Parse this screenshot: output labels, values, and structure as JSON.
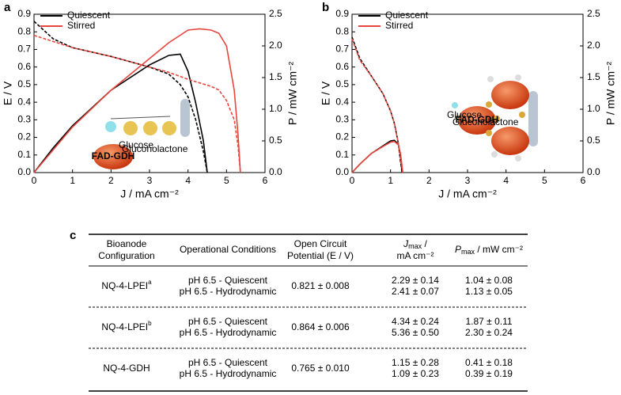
{
  "chart_data": [
    {
      "type": "line",
      "panel": "a",
      "xlabel": "J / mA cm⁻²",
      "ylabel": "E / V",
      "y2label": "P / mW cm⁻²",
      "xlim": [
        0,
        6
      ],
      "xticks": [
        0,
        1,
        2,
        3,
        4,
        5,
        6
      ],
      "ylim": [
        0,
        0.9
      ],
      "yticks": [
        {
          "value": 0,
          "label": "0.0"
        },
        0.1,
        0.2,
        0.3,
        0.4,
        0.5,
        0.6,
        0.7,
        0.8,
        0.9
      ],
      "y2lim": [
        0,
        2.5
      ],
      "y2ticks": [
        {
          "value": 0,
          "label": "0.0"
        },
        0.5,
        {
          "value": 1,
          "label": "1.0"
        },
        1.5,
        {
          "value": 2,
          "label": "2.0"
        },
        2.5
      ],
      "legend": "upper left",
      "inset_labels": [
        "FAD-GDH",
        "Glucose",
        "Gluconolactone"
      ],
      "series": [
        {
          "name": "Quiescent",
          "color": "#000000",
          "x": [
            0,
            0.5,
            1,
            2,
            3,
            3.5,
            3.8,
            4,
            4.2,
            4.4,
            4.5
          ],
          "values": [
            0.86,
            0.76,
            0.71,
            0.66,
            0.6,
            0.56,
            0.5,
            0.43,
            0.3,
            0.12,
            0
          ],
          "power": [
            0,
            0.39,
            0.74,
            1.3,
            1.7,
            1.85,
            1.87,
            1.6,
            1.1,
            0.5,
            0
          ]
        },
        {
          "name": "Stirred",
          "color": "#e8463c",
          "x": [
            0,
            1,
            2,
            3,
            3.5,
            4,
            4.3,
            4.6,
            4.8,
            5,
            5.2,
            5.3,
            5.36
          ],
          "values": [
            0.78,
            0.71,
            0.66,
            0.6,
            0.57,
            0.53,
            0.51,
            0.49,
            0.47,
            0.41,
            0.3,
            0.15,
            0
          ],
          "power": [
            0,
            0.72,
            1.3,
            1.8,
            2.05,
            2.25,
            2.27,
            2.25,
            2.2,
            2.0,
            1.3,
            0.6,
            0
          ]
        }
      ]
    },
    {
      "type": "line",
      "panel": "b",
      "xlabel": "J / mA cm⁻²",
      "ylabel": "E / V",
      "y2label": "P / mW cm⁻²",
      "xlim": [
        0,
        6
      ],
      "xticks": [
        0,
        1,
        2,
        3,
        4,
        5,
        6
      ],
      "ylim": [
        0,
        0.9
      ],
      "yticks": [
        {
          "value": 0,
          "label": "0.0"
        },
        0.1,
        0.2,
        0.3,
        0.4,
        0.5,
        0.6,
        0.7,
        0.8,
        0.9
      ],
      "y2lim": [
        0,
        2.5
      ],
      "y2ticks": [
        {
          "value": 0,
          "label": "0.0"
        },
        0.5,
        {
          "value": 1,
          "label": "1.0"
        },
        1.5,
        {
          "value": 2,
          "label": "2.0"
        },
        2.5
      ],
      "legend": "upper left",
      "inset_labels": [
        "FAD-GDH",
        "Glucose",
        "Gluconolactone"
      ],
      "series": [
        {
          "name": "Quiescent",
          "color": "#000000",
          "x": [
            0,
            0.2,
            0.5,
            0.8,
            1,
            1.1,
            1.2,
            1.25,
            1.3
          ],
          "values": [
            0.77,
            0.65,
            0.55,
            0.45,
            0.35,
            0.28,
            0.17,
            0.08,
            0
          ],
          "power": [
            0,
            0.13,
            0.3,
            0.42,
            0.5,
            0.51,
            0.45,
            0.3,
            0
          ]
        },
        {
          "name": "Stirred",
          "color": "#e8463c",
          "x": [
            0,
            0.2,
            0.5,
            0.8,
            1,
            1.1,
            1.2,
            1.26,
            1.32
          ],
          "values": [
            0.76,
            0.64,
            0.55,
            0.45,
            0.35,
            0.28,
            0.17,
            0.08,
            0
          ],
          "power": [
            0,
            0.13,
            0.3,
            0.41,
            0.48,
            0.49,
            0.44,
            0.3,
            0
          ]
        }
      ]
    }
  ],
  "table": {
    "panel": "c",
    "header": [
      {
        "lines": [
          "Bioanode",
          "Configuration"
        ]
      },
      {
        "lines": [
          "Operational Conditions"
        ]
      },
      {
        "lines": [
          "Open Circuit",
          "Potential (E / V)"
        ]
      },
      {
        "symbol": "J",
        "sub": "max",
        "unit": " /",
        "line2": "mA cm⁻²"
      },
      {
        "symbol": "P",
        "sub": "max",
        "unit": " / mW cm⁻²"
      }
    ],
    "rows": [
      {
        "config": "NQ-4-LPEI",
        "sup": "a",
        "conditions": [
          "pH 6.5 - Quiescent",
          "pH 6.5 - Hydrodynamic"
        ],
        "ocp": "0.821 ± 0.008",
        "jmax": [
          "2.29 ± 0.14",
          "2.41 ± 0.07"
        ],
        "pmax": [
          "1.04 ± 0.08",
          "1.13 ± 0.05"
        ]
      },
      {
        "config": "NQ-4-LPEI",
        "sup": "b",
        "conditions": [
          "pH 6.5 - Quiescent",
          "pH 6.5 - Hydrodynamic"
        ],
        "ocp": "0.864 ± 0.006",
        "jmax": [
          "4.34 ± 0.24",
          "5.36 ± 0.50"
        ],
        "pmax": [
          "1.87 ± 0.11",
          "2.30 ± 0.24"
        ]
      },
      {
        "config": "NQ-4-GDH",
        "sup": null,
        "conditions": [
          "pH 6.5 - Quiescent",
          "pH 6.5 - Hydrodynamic"
        ],
        "ocp": "0.765 ± 0.010",
        "jmax": [
          "1.15 ± 0.28",
          "1.09 ± 0.23"
        ],
        "pmax": [
          "0.41 ± 0.18",
          "0.39 ± 0.19"
        ]
      }
    ]
  }
}
